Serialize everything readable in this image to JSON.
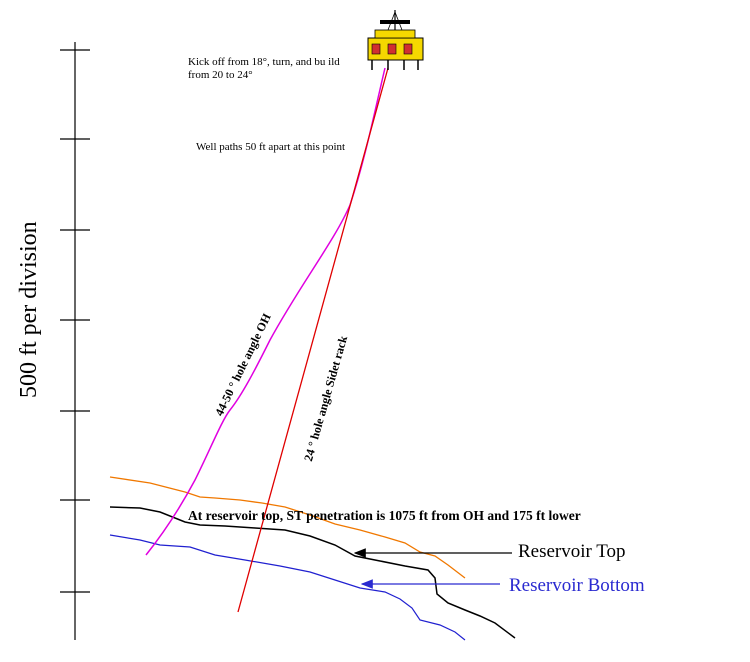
{
  "axis": {
    "scale_label": "500 ft per division"
  },
  "annotations": {
    "kickoff": [
      "Kick off from 18°, turn, and bu ild",
      "from 20 to 24°"
    ],
    "well_paths_apart": "Well paths 50 ft apart  at this point",
    "oh_angle": "44-50 ° hole angle OH",
    "sidetrack_angle": "24 ° hole angle Sidet rack",
    "penetration_note": "At reservoir top, ST penetration is 1075  ft from OH and 175 ft lower"
  },
  "legend": {
    "reservoir_top": "Reservoir Top",
    "reservoir_bottom": "Reservoir Bottom"
  },
  "colors": {
    "open_hole": "#e000e0",
    "sidetrack": "#e00000",
    "reservoir_top_line": "#f07800",
    "reservoir_top_black": "#000000",
    "reservoir_bottom": "#2020d0",
    "legend_bottom_text": "#2a2ad0",
    "rig": "#f5d800"
  },
  "icons": {
    "rig": "offshore-platform-icon"
  }
}
